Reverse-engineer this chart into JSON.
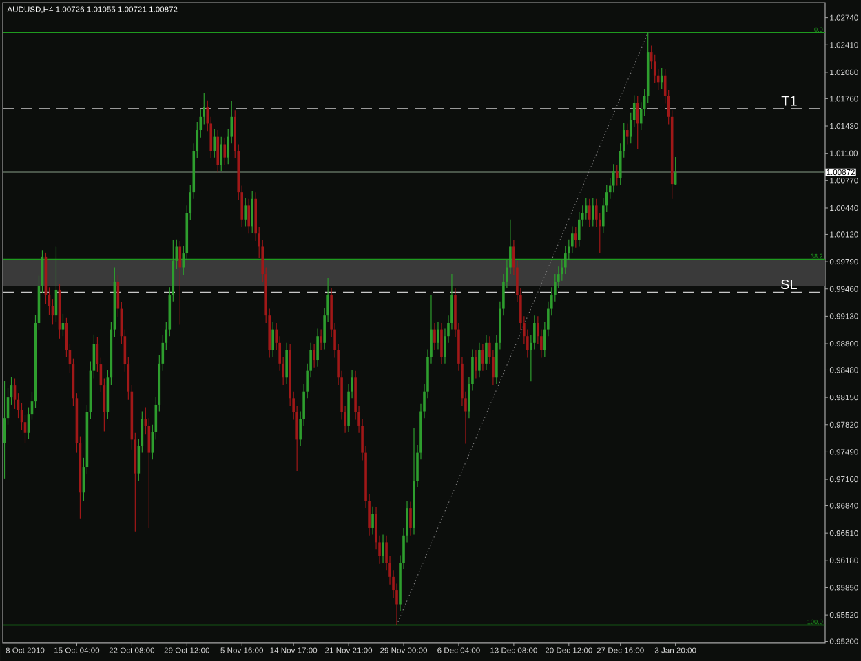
{
  "chart_data": {
    "type": "candlestick",
    "title": "AUDUSD,H4 1.00726 1.01055 1.00721 1.00872",
    "categories": [
      null,
      null,
      null,
      null,
      null,
      null,
      "8 Oct 2010",
      null,
      null,
      null,
      null,
      null,
      null,
      null,
      null,
      null,
      null,
      null,
      null,
      null,
      null,
      "15 Oct 04:00",
      null,
      null,
      null,
      null,
      null,
      null,
      null,
      null,
      null,
      null,
      null,
      null,
      null,
      null,
      null,
      "22 Oct 08:00",
      null,
      null,
      null,
      null,
      null,
      null,
      null,
      null,
      null,
      null,
      null,
      null,
      null,
      null,
      null,
      "29 Oct 12:00",
      null,
      null,
      null,
      null,
      null,
      null,
      null,
      null,
      null,
      null,
      null,
      null,
      null,
      null,
      null,
      "5 Nov 16:00",
      null,
      null,
      null,
      null,
      null,
      null,
      null,
      null,
      null,
      null,
      null,
      null,
      null,
      null,
      "14 Nov 17:00",
      null,
      null,
      null,
      null,
      null,
      null,
      null,
      null,
      null,
      null,
      null,
      null,
      null,
      null,
      null,
      "21 Nov 21:00",
      null,
      null,
      null,
      null,
      null,
      null,
      null,
      null,
      null,
      null,
      null,
      null,
      null,
      null,
      null,
      "29 Nov 00:00",
      null,
      null,
      null,
      null,
      null,
      null,
      null,
      null,
      null,
      null,
      null,
      null,
      null,
      null,
      null,
      "6 Dec 04:00",
      null,
      null,
      null,
      null,
      null,
      null,
      null,
      null,
      null,
      null,
      null,
      null,
      null,
      null,
      null,
      "13 Dec 08:00",
      null,
      null,
      null,
      null,
      null,
      null,
      null,
      null,
      null,
      null,
      null,
      null,
      null,
      null,
      null,
      "20 Dec 12:00",
      null,
      null,
      null,
      null,
      null,
      null,
      null,
      null,
      null,
      null,
      null,
      null,
      null,
      null,
      "27 Dec 16:00",
      null,
      null,
      null,
      null,
      null,
      null,
      null,
      null,
      null,
      null,
      null,
      null,
      null,
      null,
      null,
      "3 Jan 20:00",
      null,
      null,
      null,
      null,
      null,
      null,
      null,
      null,
      null,
      null,
      null,
      null,
      null,
      null,
      null,
      null,
      null,
      null,
      null,
      null,
      null,
      null,
      null,
      null,
      null,
      null,
      null,
      null,
      null,
      null,
      null,
      null,
      null,
      null,
      null,
      null,
      null,
      null,
      null,
      null,
      null,
      null,
      null
    ],
    "ohlc": [
      [
        0.976,
        0.9835,
        0.9717,
        0.979
      ],
      [
        0.979,
        0.9826,
        0.9782,
        0.9815
      ],
      [
        0.9815,
        0.984,
        0.9806,
        0.983
      ],
      [
        0.983,
        0.9838,
        0.9801,
        0.9812
      ],
      [
        0.9812,
        0.982,
        0.979,
        0.98
      ],
      [
        0.98,
        0.9808,
        0.9776,
        0.9785
      ],
      [
        0.9785,
        0.9794,
        0.976,
        0.9772
      ],
      [
        0.9772,
        0.9803,
        0.9765,
        0.9795
      ],
      [
        0.9795,
        0.9822,
        0.9788,
        0.981
      ],
      [
        0.981,
        0.9915,
        0.9802,
        0.9905
      ],
      [
        0.9905,
        0.9962,
        0.9896,
        0.995
      ],
      [
        0.995,
        0.9993,
        0.9941,
        0.9985
      ],
      [
        0.9985,
        0.999,
        0.9928,
        0.9939
      ],
      [
        0.9939,
        0.9948,
        0.9915,
        0.9925
      ],
      [
        0.9925,
        0.9934,
        0.9903,
        0.9914
      ],
      [
        0.9914,
        0.9997,
        0.9906,
        0.9945
      ],
      [
        0.9945,
        0.9952,
        0.9886,
        0.9897
      ],
      [
        0.9897,
        0.9916,
        0.9889,
        0.9905
      ],
      [
        0.9905,
        0.9911,
        0.9864,
        0.9872
      ],
      [
        0.9872,
        0.988,
        0.9845,
        0.9855
      ],
      [
        0.9855,
        0.9862,
        0.9805,
        0.9814
      ],
      [
        0.9814,
        0.982,
        0.9748,
        0.976
      ],
      [
        0.976,
        0.9768,
        0.9668,
        0.97
      ],
      [
        0.97,
        0.9742,
        0.969,
        0.9731
      ],
      [
        0.9731,
        0.9806,
        0.9722,
        0.9797
      ],
      [
        0.9797,
        0.9858,
        0.9789,
        0.9847
      ],
      [
        0.9847,
        0.9891,
        0.9838,
        0.988
      ],
      [
        0.988,
        0.9888,
        0.9846,
        0.9855
      ],
      [
        0.9855,
        0.9863,
        0.9821,
        0.983
      ],
      [
        0.983,
        0.9838,
        0.9774,
        0.9797
      ],
      [
        0.9797,
        0.9848,
        0.9789,
        0.9839
      ],
      [
        0.9839,
        0.9906,
        0.983,
        0.9897
      ],
      [
        0.9897,
        0.9972,
        0.9888,
        0.9955
      ],
      [
        0.9955,
        0.9963,
        0.9912,
        0.9922
      ],
      [
        0.9922,
        0.993,
        0.988,
        0.9889
      ],
      [
        0.9889,
        0.9897,
        0.9846,
        0.9855
      ],
      [
        0.9855,
        0.9864,
        0.9812,
        0.9822
      ],
      [
        0.9822,
        0.983,
        0.9752,
        0.9764
      ],
      [
        0.9764,
        0.9772,
        0.9653,
        0.9723
      ],
      [
        0.9723,
        0.9765,
        0.9714,
        0.9756
      ],
      [
        0.9756,
        0.9798,
        0.9748,
        0.9789
      ],
      [
        0.9789,
        0.9803,
        0.977,
        0.9781
      ],
      [
        0.9781,
        0.979,
        0.9657,
        0.9748
      ],
      [
        0.9748,
        0.9782,
        0.974,
        0.9773
      ],
      [
        0.9773,
        0.9815,
        0.9764,
        0.9806
      ],
      [
        0.9806,
        0.9866,
        0.9798,
        0.9856
      ],
      [
        0.9856,
        0.989,
        0.9847,
        0.9881
      ],
      [
        0.9881,
        0.9906,
        0.9872,
        0.9897
      ],
      [
        0.9897,
        0.9948,
        0.9889,
        0.9939
      ],
      [
        0.9939,
        1.0005,
        0.9931,
        0.998
      ],
      [
        0.998,
        1.0006,
        0.997,
        0.9997
      ],
      [
        0.9997,
        1.0004,
        0.9903,
        0.9972
      ],
      [
        0.9972,
        0.9998,
        0.9963,
        0.9989
      ],
      [
        0.9989,
        1.0047,
        0.9981,
        1.0038
      ],
      [
        1.0038,
        1.0072,
        1.0029,
        1.0063
      ],
      [
        1.0063,
        1.0122,
        1.0055,
        1.0113
      ],
      [
        1.0113,
        1.0148,
        1.0104,
        1.0138
      ],
      [
        1.0138,
        1.0163,
        1.0129,
        1.0154
      ],
      [
        1.0154,
        1.0183,
        1.0145,
        1.0166
      ],
      [
        1.0166,
        1.0174,
        1.0137,
        1.0146
      ],
      [
        1.0146,
        1.0154,
        1.0104,
        1.0113
      ],
      [
        1.0113,
        1.0139,
        1.0105,
        1.013
      ],
      [
        1.013,
        1.0138,
        1.0087,
        1.0096
      ],
      [
        1.0096,
        1.013,
        1.0088,
        1.0121
      ],
      [
        1.0121,
        1.0129,
        1.0096,
        1.0105
      ],
      [
        1.0105,
        1.0139,
        1.0097,
        1.013
      ],
      [
        1.013,
        1.0173,
        1.0122,
        1.0154
      ],
      [
        1.0154,
        1.0162,
        1.0104,
        1.0113
      ],
      [
        1.0113,
        1.0121,
        1.0054,
        1.0063
      ],
      [
        1.0063,
        1.0071,
        1.0021,
        1.003
      ],
      [
        1.003,
        1.0056,
        1.0022,
        1.0047
      ],
      [
        1.0047,
        1.0055,
        1.0013,
        1.0022
      ],
      [
        1.0022,
        1.0064,
        1.0014,
        1.0055
      ],
      [
        1.0055,
        1.0063,
        1.0004,
        1.0013
      ],
      [
        1.0013,
        1.0021,
        0.9984,
        0.9997
      ],
      [
        0.9997,
        1.0005,
        0.9955,
        0.9964
      ],
      [
        0.9964,
        0.9972,
        0.9905,
        0.9914
      ],
      [
        0.9914,
        0.9922,
        0.9863,
        0.9872
      ],
      [
        0.9872,
        0.9906,
        0.9864,
        0.9897
      ],
      [
        0.9897,
        0.9905,
        0.9872,
        0.9881
      ],
      [
        0.9881,
        0.9889,
        0.9847,
        0.9856
      ],
      [
        0.9856,
        0.9864,
        0.983,
        0.9839
      ],
      [
        0.9839,
        0.9881,
        0.9831,
        0.9872
      ],
      [
        0.9872,
        0.988,
        0.9805,
        0.9814
      ],
      [
        0.9814,
        0.9822,
        0.9788,
        0.9797
      ],
      [
        0.9797,
        0.9805,
        0.9726,
        0.9764
      ],
      [
        0.9764,
        0.9798,
        0.9756,
        0.9789
      ],
      [
        0.9789,
        0.9831,
        0.9781,
        0.9822
      ],
      [
        0.9822,
        0.9856,
        0.9814,
        0.9847
      ],
      [
        0.9847,
        0.9881,
        0.9839,
        0.9872
      ],
      [
        0.9872,
        0.988,
        0.9851,
        0.986
      ],
      [
        0.986,
        0.9898,
        0.9852,
        0.9889
      ],
      [
        0.9889,
        0.9897,
        0.9872,
        0.9881
      ],
      [
        0.9881,
        0.9923,
        0.9873,
        0.9914
      ],
      [
        0.9914,
        0.9959,
        0.9906,
        0.9939
      ],
      [
        0.9939,
        0.9947,
        0.9888,
        0.9897
      ],
      [
        0.9897,
        0.9905,
        0.9863,
        0.9872
      ],
      [
        0.9872,
        0.988,
        0.983,
        0.9839
      ],
      [
        0.9839,
        0.9847,
        0.9788,
        0.9797
      ],
      [
        0.9797,
        0.9805,
        0.9772,
        0.9781
      ],
      [
        0.9781,
        0.9831,
        0.9773,
        0.9822
      ],
      [
        0.9822,
        0.9848,
        0.9814,
        0.9839
      ],
      [
        0.9839,
        0.9847,
        0.9788,
        0.9797
      ],
      [
        0.9797,
        0.9805,
        0.9772,
        0.9781
      ],
      [
        0.9781,
        0.9789,
        0.9739,
        0.9748
      ],
      [
        0.9748,
        0.9756,
        0.9681,
        0.969
      ],
      [
        0.969,
        0.9698,
        0.9648,
        0.9657
      ],
      [
        0.9657,
        0.9683,
        0.9649,
        0.9674
      ],
      [
        0.9674,
        0.9682,
        0.9631,
        0.964
      ],
      [
        0.964,
        0.9648,
        0.9614,
        0.9623
      ],
      [
        0.9623,
        0.9649,
        0.9615,
        0.964
      ],
      [
        0.964,
        0.9648,
        0.9606,
        0.9615
      ],
      [
        0.9615,
        0.9623,
        0.9589,
        0.9598
      ],
      [
        0.9598,
        0.9606,
        0.9573,
        0.9582
      ],
      [
        0.9582,
        0.959,
        0.954,
        0.9565
      ],
      [
        0.9565,
        0.9624,
        0.9557,
        0.9615
      ],
      [
        0.9615,
        0.9657,
        0.9607,
        0.9648
      ],
      [
        0.9648,
        0.969,
        0.964,
        0.9681
      ],
      [
        0.9681,
        0.9689,
        0.9648,
        0.9657
      ],
      [
        0.9657,
        0.9778,
        0.9649,
        0.9714
      ],
      [
        0.9714,
        0.9757,
        0.9706,
        0.9748
      ],
      [
        0.9748,
        0.9807,
        0.974,
        0.9798
      ],
      [
        0.9798,
        0.9831,
        0.979,
        0.9822
      ],
      [
        0.9822,
        0.9873,
        0.9814,
        0.9864
      ],
      [
        0.9864,
        0.9939,
        0.9856,
        0.9897
      ],
      [
        0.9897,
        0.9905,
        0.9872,
        0.9881
      ],
      [
        0.9881,
        0.9906,
        0.9873,
        0.9897
      ],
      [
        0.9897,
        0.9905,
        0.9855,
        0.9864
      ],
      [
        0.9864,
        0.9898,
        0.9856,
        0.9889
      ],
      [
        0.9889,
        0.9914,
        0.9881,
        0.9905
      ],
      [
        0.9905,
        0.9964,
        0.9897,
        0.9939
      ],
      [
        0.9939,
        0.9947,
        0.9888,
        0.9897
      ],
      [
        0.9897,
        0.9905,
        0.9847,
        0.9856
      ],
      [
        0.9856,
        0.9864,
        0.9805,
        0.9814
      ],
      [
        0.9814,
        0.9822,
        0.9759,
        0.9798
      ],
      [
        0.9798,
        0.984,
        0.979,
        0.9831
      ],
      [
        0.9831,
        0.9873,
        0.9823,
        0.9864
      ],
      [
        0.9864,
        0.9872,
        0.9838,
        0.9847
      ],
      [
        0.9847,
        0.9881,
        0.9839,
        0.9872
      ],
      [
        0.9872,
        0.988,
        0.9847,
        0.9856
      ],
      [
        0.9856,
        0.989,
        0.9848,
        0.9881
      ],
      [
        0.9881,
        0.9889,
        0.9855,
        0.9864
      ],
      [
        0.9864,
        0.9872,
        0.983,
        0.9839
      ],
      [
        0.9839,
        0.989,
        0.9831,
        0.9881
      ],
      [
        0.9881,
        0.9931,
        0.9873,
        0.9922
      ],
      [
        0.9922,
        0.9964,
        0.9914,
        0.9955
      ],
      [
        0.9955,
        0.9981,
        0.9947,
        0.9972
      ],
      [
        0.9972,
        1.003,
        0.9964,
        0.9997
      ],
      [
        0.9997,
        1.0005,
        0.9963,
        0.9972
      ],
      [
        0.9972,
        0.998,
        0.993,
        0.9939
      ],
      [
        0.9939,
        0.9947,
        0.9896,
        0.9905
      ],
      [
        0.9905,
        0.9913,
        0.988,
        0.9889
      ],
      [
        0.9889,
        0.9897,
        0.9863,
        0.9872
      ],
      [
        0.9872,
        0.989,
        0.9834,
        0.9881
      ],
      [
        0.9881,
        0.9914,
        0.9873,
        0.9905
      ],
      [
        0.9905,
        0.9913,
        0.988,
        0.9889
      ],
      [
        0.9889,
        0.9897,
        0.9863,
        0.9872
      ],
      [
        0.9872,
        0.9906,
        0.9864,
        0.9897
      ],
      [
        0.9897,
        0.9931,
        0.9889,
        0.9922
      ],
      [
        0.9922,
        0.9948,
        0.9914,
        0.9939
      ],
      [
        0.9939,
        0.9964,
        0.9931,
        0.9955
      ],
      [
        0.9955,
        0.9973,
        0.9947,
        0.9964
      ],
      [
        0.9964,
        0.9981,
        0.9956,
        0.9972
      ],
      [
        0.9972,
        0.9998,
        0.9964,
        0.9989
      ],
      [
        0.9989,
        1.0006,
        0.9981,
        0.9997
      ],
      [
        0.9997,
        1.0022,
        0.9989,
        1.0013
      ],
      [
        1.0013,
        1.0021,
        0.9996,
        1.0005
      ],
      [
        1.0005,
        1.0039,
        0.9997,
        1.003
      ],
      [
        1.003,
        1.0047,
        1.0022,
        1.0038
      ],
      [
        1.0038,
        1.0056,
        1.003,
        1.0047
      ],
      [
        1.0047,
        1.0055,
        1.0021,
        1.003
      ],
      [
        1.003,
        1.0056,
        1.0022,
        1.0047
      ],
      [
        1.0047,
        1.0055,
        1.0021,
        1.003
      ],
      [
        1.003,
        1.0038,
        0.9989,
        1.0022
      ],
      [
        1.0022,
        1.0056,
        1.0014,
        1.0047
      ],
      [
        1.0047,
        1.0072,
        1.0039,
        1.0063
      ],
      [
        1.0063,
        1.008,
        1.0055,
        1.0071
      ],
      [
        1.0071,
        1.0097,
        1.0063,
        1.0088
      ],
      [
        1.0088,
        1.0096,
        1.0071,
        1.008
      ],
      [
        1.008,
        1.0122,
        1.0072,
        1.0113
      ],
      [
        1.0113,
        1.0147,
        1.0105,
        1.0138
      ],
      [
        1.0138,
        1.0146,
        1.0121,
        1.013
      ],
      [
        1.013,
        1.0159,
        1.0122,
        1.015
      ],
      [
        1.015,
        1.018,
        1.0142,
        1.0171
      ],
      [
        1.0171,
        1.0179,
        1.0115,
        1.0146
      ],
      [
        1.0146,
        1.0172,
        1.0138,
        1.0163
      ],
      [
        1.0163,
        1.0188,
        1.0155,
        1.0179
      ],
      [
        1.0179,
        1.0256,
        1.0171,
        1.0232
      ],
      [
        1.0232,
        1.024,
        1.0212,
        1.0221
      ],
      [
        1.0221,
        1.0229,
        1.0195,
        1.0204
      ],
      [
        1.0204,
        1.0212,
        1.0187,
        1.0196
      ],
      [
        1.0196,
        1.0213,
        1.0188,
        1.0204
      ],
      [
        1.0204,
        1.0212,
        1.017,
        1.0179
      ],
      [
        1.0179,
        1.0187,
        1.0145,
        1.0154
      ],
      [
        1.0154,
        1.0162,
        1.0055,
        1.0073
      ],
      [
        1.00726,
        1.01055,
        1.00721,
        1.00872
      ],
      null,
      null,
      null,
      null,
      null,
      null,
      null,
      null,
      null,
      null,
      null,
      null,
      null,
      null,
      null,
      null,
      null,
      null,
      null,
      null,
      null,
      null,
      null,
      null,
      null,
      null,
      null,
      null,
      null,
      null,
      null,
      null,
      null,
      null,
      null,
      null,
      null,
      null,
      null,
      null,
      null,
      null,
      null
    ],
    "colors": [
      "#2e9e2e",
      "#2e9e2e",
      "#2e9e2e",
      "#a01818",
      "#a01818",
      "#a01818",
      "#a01818",
      "#2e9e2e",
      "#2e9e2e",
      "#2e9e2e",
      "#2e9e2e",
      "#2e9e2e",
      "#a01818",
      "#a01818",
      "#a01818",
      "#2e9e2e",
      "#a01818",
      "#2e9e2e",
      "#a01818",
      "#a01818",
      "#a01818",
      "#a01818",
      "#a01818",
      "#2e9e2e",
      "#2e9e2e",
      "#2e9e2e",
      "#2e9e2e",
      "#a01818",
      "#a01818",
      "#a01818",
      "#2e9e2e",
      "#2e9e2e",
      "#2e9e2e",
      "#a01818",
      "#a01818",
      "#a01818",
      "#a01818",
      "#a01818",
      "#a01818",
      "#2e9e2e",
      "#2e9e2e",
      "#a01818",
      "#a01818",
      "#2e9e2e",
      "#2e9e2e",
      "#2e9e2e",
      "#2e9e2e",
      "#2e9e2e",
      "#2e9e2e",
      "#2e9e2e",
      "#2e9e2e",
      "#a01818",
      "#2e9e2e",
      "#2e9e2e",
      "#2e9e2e",
      "#2e9e2e",
      "#2e9e2e",
      "#2e9e2e",
      "#2e9e2e",
      "#a01818",
      "#a01818",
      "#2e9e2e",
      "#a01818",
      "#2e9e2e",
      "#a01818",
      "#2e9e2e",
      "#2e9e2e",
      "#a01818",
      "#a01818",
      "#a01818",
      "#2e9e2e",
      "#a01818",
      "#2e9e2e",
      "#a01818",
      "#a01818",
      "#a01818",
      "#a01818",
      "#a01818",
      "#2e9e2e",
      "#a01818",
      "#a01818",
      "#a01818",
      "#2e9e2e",
      "#a01818",
      "#a01818",
      "#a01818",
      "#2e9e2e",
      "#2e9e2e",
      "#2e9e2e",
      "#2e9e2e",
      "#a01818",
      "#2e9e2e",
      "#a01818",
      "#2e9e2e",
      "#2e9e2e",
      "#a01818",
      "#a01818",
      "#a01818",
      "#a01818",
      "#a01818",
      "#2e9e2e",
      "#2e9e2e",
      "#a01818",
      "#a01818",
      "#a01818",
      "#a01818",
      "#a01818",
      "#2e9e2e",
      "#a01818",
      "#a01818",
      "#2e9e2e",
      "#a01818",
      "#a01818",
      "#a01818",
      "#a01818",
      "#2e9e2e",
      "#2e9e2e",
      "#2e9e2e",
      "#a01818",
      "#2e9e2e",
      "#2e9e2e",
      "#2e9e2e",
      "#2e9e2e",
      "#2e9e2e",
      "#2e9e2e",
      "#a01818",
      "#2e9e2e",
      "#a01818",
      "#2e9e2e",
      "#2e9e2e",
      "#2e9e2e",
      "#a01818",
      "#a01818",
      "#a01818",
      "#a01818",
      "#2e9e2e",
      "#2e9e2e",
      "#a01818",
      "#2e9e2e",
      "#a01818",
      "#2e9e2e",
      "#a01818",
      "#a01818",
      "#2e9e2e",
      "#2e9e2e",
      "#2e9e2e",
      "#2e9e2e",
      "#2e9e2e",
      "#a01818",
      "#a01818",
      "#a01818",
      "#a01818",
      "#a01818",
      "#2e9e2e",
      "#2e9e2e",
      "#a01818",
      "#a01818",
      "#2e9e2e",
      "#2e9e2e",
      "#2e9e2e",
      "#2e9e2e",
      "#2e9e2e",
      "#2e9e2e",
      "#2e9e2e",
      "#2e9e2e",
      "#2e9e2e",
      "#a01818",
      "#2e9e2e",
      "#2e9e2e",
      "#2e9e2e",
      "#a01818",
      "#2e9e2e",
      "#a01818",
      "#a01818",
      "#2e9e2e",
      "#2e9e2e",
      "#2e9e2e",
      "#2e9e2e",
      "#a01818",
      "#2e9e2e",
      "#2e9e2e",
      "#a01818",
      "#2e9e2e",
      "#2e9e2e",
      "#a01818",
      "#2e9e2e",
      "#2e9e2e",
      "#2e9e2e",
      "#a01818",
      "#a01818",
      "#a01818",
      "#2e9e2e",
      "#a01818",
      "#a01818",
      "#a01818",
      "#2e9e2e",
      null,
      null,
      null,
      null,
      null,
      null,
      null,
      null,
      null,
      null,
      null,
      null,
      null,
      null,
      null,
      null,
      null,
      null,
      null,
      null,
      null,
      null,
      null,
      null,
      null,
      null,
      null,
      null,
      null,
      null,
      null,
      null,
      null,
      null,
      null,
      null,
      null,
      null,
      null,
      null,
      null,
      null,
      null
    ],
    "series": [
      {
        "type": "line",
        "color": "#7a7a7a",
        "line_style": "dotted",
        "values": [
          null,
          null,
          null,
          null,
          null,
          null,
          null,
          null,
          null,
          null,
          null,
          null,
          null,
          null,
          null,
          null,
          null,
          null,
          null,
          null,
          null,
          null,
          null,
          null,
          null,
          null,
          null,
          null,
          null,
          null,
          null,
          null,
          null,
          null,
          null,
          null,
          null,
          null,
          null,
          null,
          null,
          null,
          null,
          null,
          null,
          null,
          null,
          null,
          null,
          null,
          null,
          null,
          null,
          null,
          null,
          null,
          null,
          null,
          null,
          null,
          null,
          null,
          null,
          null,
          null,
          null,
          null,
          null,
          null,
          null,
          null,
          null,
          null,
          null,
          null,
          null,
          null,
          null,
          null,
          null,
          null,
          null,
          null,
          null,
          null,
          null,
          null,
          null,
          null,
          null,
          null,
          null,
          null,
          null,
          null,
          null,
          null,
          null,
          null,
          null,
          null,
          null,
          null,
          null,
          null,
          null,
          null,
          null,
          null,
          null,
          null,
          null,
          null,
          null,
          0.954,
          null,
          null,
          null,
          null,
          null,
          null,
          null,
          null,
          null,
          null,
          null,
          null,
          null,
          null,
          null,
          null,
          null,
          null,
          null,
          null,
          null,
          null,
          null,
          null,
          null,
          null,
          null,
          null,
          null,
          null,
          null,
          null,
          null,
          null,
          null,
          null,
          null,
          null,
          null,
          null,
          null,
          null,
          null,
          null,
          null,
          null,
          null,
          null,
          null,
          null,
          null,
          null,
          null,
          null,
          null,
          null,
          null,
          null,
          null,
          null,
          null,
          null,
          null,
          null,
          null,
          null,
          null,
          null,
          null,
          null,
          null,
          null,
          1.0256,
          null,
          null,
          null,
          null,
          null,
          null,
          null,
          null,
          null,
          null,
          null,
          null,
          null,
          null,
          null,
          null,
          null,
          null,
          null,
          null,
          null,
          null,
          null,
          null,
          null,
          null,
          null,
          null,
          null,
          null,
          null,
          null,
          null,
          null,
          null,
          null,
          null,
          null,
          null,
          null,
          null,
          null,
          null,
          null,
          null,
          null,
          null,
          null,
          null,
          null,
          null
        ]
      }
    ],
    "ylim": [
      0.9518,
      1.0292
    ],
    "yticks": [
      {
        "value": 0.952,
        "label": "0.95200"
      },
      {
        "value": 0.9552,
        "label": "0.95520"
      },
      {
        "value": 0.9585,
        "label": "0.95850"
      },
      {
        "value": 0.9618,
        "label": "0.96180"
      },
      {
        "value": 0.9651,
        "label": "0.96510"
      },
      {
        "value": 0.9684,
        "label": "0.96840"
      },
      {
        "value": 0.9716,
        "label": "0.97160"
      },
      {
        "value": 0.9749,
        "label": "0.97490"
      },
      {
        "value": 0.9782,
        "label": "0.97820"
      },
      {
        "value": 0.9815,
        "label": "0.98150"
      },
      {
        "value": 0.9848,
        "label": "0.98480"
      },
      {
        "value": 0.988,
        "label": "0.98800"
      },
      {
        "value": 0.9913,
        "label": "0.99130"
      },
      {
        "value": 0.9946,
        "label": "0.99460"
      },
      {
        "value": 0.9979,
        "label": "0.99790"
      },
      {
        "value": 1.0012,
        "label": "1.00120"
      },
      {
        "value": 1.0044,
        "label": "1.00440"
      },
      {
        "value": 1.0077,
        "label": "1.00770"
      },
      {
        "value": 1.011,
        "label": "1.01100"
      },
      {
        "value": 1.0143,
        "label": "1.01430"
      },
      {
        "value": 1.0176,
        "label": "1.01760"
      },
      {
        "value": 1.0208,
        "label": "1.02080"
      },
      {
        "value": 1.0241,
        "label": "1.02410"
      },
      {
        "value": 1.0274,
        "label": "1.02740"
      }
    ],
    "bands": [
      {
        "axis": "y",
        "from": 0.9949,
        "to": 0.9982,
        "color": "#3a3a3a"
      }
    ],
    "ref_lines": [
      {
        "axis": "y",
        "value": 1.0256,
        "color": "#1f9a1f"
      },
      {
        "axis": "y",
        "value": 0.9982,
        "color": "#1f9a1f"
      },
      {
        "axis": "y",
        "value": 0.954,
        "color": "#1f9a1f"
      },
      {
        "axis": "y",
        "value": 1.0164,
        "label": "T1",
        "color": "#9a9a9a",
        "line_style": "dashed"
      },
      {
        "axis": "y",
        "value": 0.9942,
        "label": "SL",
        "color": "#c8c8c8",
        "line_style": "dashed"
      },
      {
        "axis": "y",
        "value": 1.00872,
        "label": "1.00872",
        "color": "#5f6f5f"
      }
    ],
    "annotations": [
      {
        "text": "0.0",
        "y": 1.0256
      },
      {
        "text": "38.2",
        "y": 0.9982
      },
      {
        "text": "100.0",
        "y": 0.954
      }
    ]
  }
}
